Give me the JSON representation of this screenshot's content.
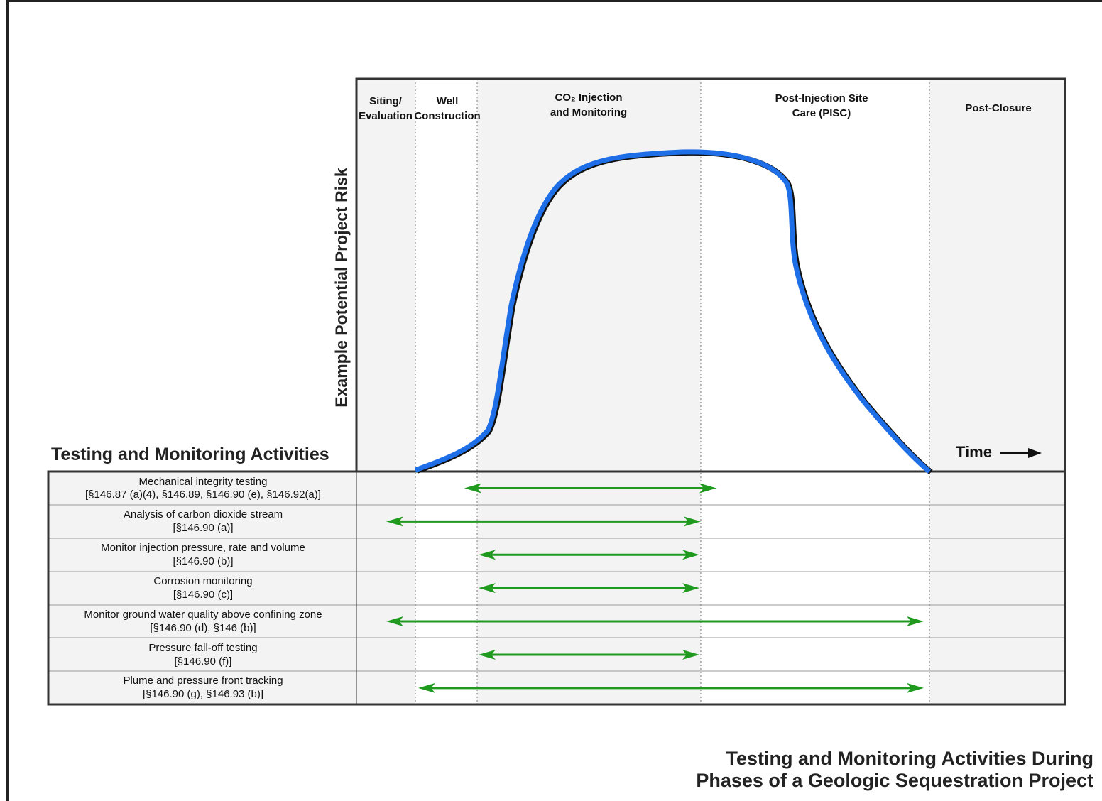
{
  "title_lines": [
    "Testing and Monitoring Activities During",
    "Phases of a Geologic Sequestration Project"
  ],
  "activities_heading": "Testing and Monitoring Activities",
  "y_axis_label": "Example Potential Project Risk",
  "time_label": "Time",
  "phases": [
    {
      "lines": [
        "Siting/",
        "Evaluation"
      ]
    },
    {
      "lines": [
        "Well",
        "Construction"
      ]
    },
    {
      "lines": [
        "CO₂ Injection",
        "and Monitoring"
      ]
    },
    {
      "lines": [
        "Post-Injection Site",
        "Care (PISC)"
      ]
    },
    {
      "lines": [
        "Post-Closure"
      ]
    }
  ],
  "activities": [
    {
      "name": "Mechanical integrity testing",
      "citation": "[§146.87 (a)(4), §146.89, §146.90 (e), §146.92(a)]",
      "start_phase": 2,
      "end_phase": 2
    },
    {
      "name": "Analysis of carbon dioxide stream",
      "citation": "[§146.90 (a)]",
      "start_phase": 0,
      "end_phase": 2
    },
    {
      "name": "Monitor injection pressure, rate and volume",
      "citation": "[§146.90 (b)]",
      "start_phase": 2,
      "end_phase": 2
    },
    {
      "name": "Corrosion monitoring",
      "citation": "[§146.90 (c)]",
      "start_phase": 2,
      "end_phase": 2
    },
    {
      "name": "Monitor ground water quality above confining zone",
      "citation": "[§146.90 (d), §146 (b)]",
      "start_phase": 0,
      "end_phase": 3
    },
    {
      "name": "Pressure fall-off testing",
      "citation": "[§146.90 (f)]",
      "start_phase": 2,
      "end_phase": 2
    },
    {
      "name": "Plume and pressure front tracking",
      "citation": "[§146.90 (g), §146.93 (b)]",
      "start_phase": 1,
      "end_phase": 3
    }
  ],
  "colors": {
    "risk_curve": "#1e6ee8",
    "arrows": "#1f9a1f",
    "shaded_phase": "#f3f3f3",
    "border": "#333333"
  }
}
